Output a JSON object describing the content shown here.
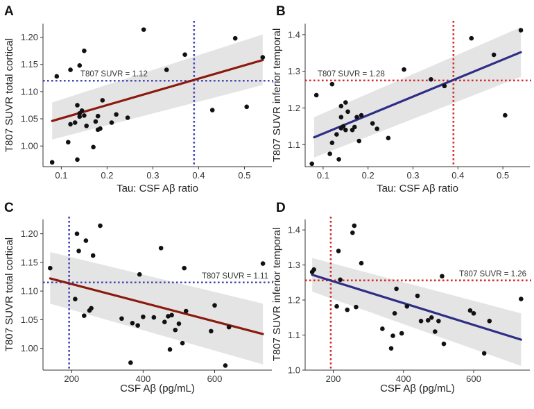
{
  "chart_data": [
    {
      "panel": "A",
      "type": "scatter",
      "xlabel": "Tau: CSF Aβ ratio",
      "ylabel": "T807 SUVR total cortical",
      "xlim": [
        0.06,
        0.56
      ],
      "ylim": [
        0.962,
        1.225
      ],
      "xticks": [
        0.1,
        0.2,
        0.3,
        0.4,
        0.5
      ],
      "xtick_labels": [
        "0.1",
        "0.2",
        "0.3",
        "0.4",
        "0.5"
      ],
      "yticks": [
        1.0,
        1.05,
        1.1,
        1.15,
        1.2
      ],
      "ytick_labels": [
        "1.00",
        "1.05",
        "1.10",
        "1.15",
        "1.20"
      ],
      "points": [
        [
          0.08,
          0.97
        ],
        [
          0.09,
          1.128
        ],
        [
          0.115,
          1.007
        ],
        [
          0.12,
          1.04
        ],
        [
          0.12,
          1.14
        ],
        [
          0.13,
          1.043
        ],
        [
          0.135,
          0.975
        ],
        [
          0.135,
          1.075
        ],
        [
          0.14,
          1.06
        ],
        [
          0.14,
          1.148
        ],
        [
          0.14,
          1.054
        ],
        [
          0.145,
          1.065
        ],
        [
          0.15,
          1.056
        ],
        [
          0.15,
          1.175
        ],
        [
          0.155,
          1.037
        ],
        [
          0.17,
          0.998
        ],
        [
          0.175,
          1.045
        ],
        [
          0.18,
          1.03
        ],
        [
          0.18,
          1.055
        ],
        [
          0.185,
          1.032
        ],
        [
          0.19,
          1.084
        ],
        [
          0.21,
          1.043
        ],
        [
          0.22,
          1.058
        ],
        [
          0.245,
          1.052
        ],
        [
          0.28,
          1.214
        ],
        [
          0.33,
          1.14
        ],
        [
          0.37,
          1.168
        ],
        [
          0.43,
          1.066
        ],
        [
          0.48,
          1.198
        ],
        [
          0.505,
          1.072
        ],
        [
          0.54,
          1.163
        ]
      ],
      "regression": {
        "x": [
          0.08,
          0.54
        ],
        "y": [
          1.046,
          1.158
        ],
        "color": "#8b1a0e",
        "ci_upper": [
          1.08,
          1.205
        ],
        "ci_lower": [
          1.012,
          1.112
        ]
      },
      "threshold_x": 0.39,
      "threshold_y": 1.12,
      "ref_color": "#4646b4",
      "ref_label": "T807 SUVR = 1.12"
    },
    {
      "panel": "B",
      "type": "scatter",
      "xlabel": "Tau: CSF Aβ ratio",
      "ylabel": "T807 SUVR inferior temporal",
      "xlim": [
        0.06,
        0.56
      ],
      "ylim": [
        1.04,
        1.43
      ],
      "xticks": [
        0.1,
        0.2,
        0.3,
        0.4,
        0.5
      ],
      "xtick_labels": [
        "0.1",
        "0.2",
        "0.3",
        "0.4",
        "0.5"
      ],
      "yticks": [
        1.1,
        1.2,
        1.3,
        1.4
      ],
      "ytick_labels": [
        "1.1",
        "1.2",
        "1.3",
        "1.4"
      ],
      "points": [
        [
          0.075,
          1.048
        ],
        [
          0.085,
          1.235
        ],
        [
          0.115,
          1.075
        ],
        [
          0.12,
          1.105
        ],
        [
          0.12,
          1.265
        ],
        [
          0.13,
          1.128
        ],
        [
          0.135,
          1.06
        ],
        [
          0.14,
          1.145
        ],
        [
          0.14,
          1.175
        ],
        [
          0.14,
          1.205
        ],
        [
          0.145,
          1.15
        ],
        [
          0.15,
          1.14
        ],
        [
          0.15,
          1.215
        ],
        [
          0.155,
          1.19
        ],
        [
          0.165,
          1.14
        ],
        [
          0.17,
          1.148
        ],
        [
          0.175,
          1.175
        ],
        [
          0.18,
          1.11
        ],
        [
          0.185,
          1.18
        ],
        [
          0.21,
          1.158
        ],
        [
          0.22,
          1.143
        ],
        [
          0.245,
          1.118
        ],
        [
          0.28,
          1.305
        ],
        [
          0.34,
          1.278
        ],
        [
          0.37,
          1.26
        ],
        [
          0.43,
          1.39
        ],
        [
          0.48,
          1.345
        ],
        [
          0.505,
          1.18
        ],
        [
          0.54,
          1.412
        ]
      ],
      "regression": {
        "x": [
          0.08,
          0.54
        ],
        "y": [
          1.12,
          1.352
        ],
        "color": "#2e2e86",
        "ci_upper": [
          1.175,
          1.42
        ],
        "ci_lower": [
          1.065,
          1.285
        ]
      },
      "threshold_x": 0.39,
      "threshold_y": 1.275,
      "ref_color": "#d42a2a",
      "ref_label": "T807 SUVR = 1.28"
    },
    {
      "panel": "C",
      "type": "scatter",
      "xlabel": "CSF Aβ (pg/mL)",
      "ylabel": "T807 SUVR total cortical",
      "xlim": [
        120,
        760
      ],
      "ylim": [
        0.962,
        1.225
      ],
      "xticks": [
        200,
        400,
        600
      ],
      "xtick_labels": [
        "200",
        "400",
        "600"
      ],
      "yticks": [
        1.0,
        1.05,
        1.1,
        1.15,
        1.2
      ],
      "ytick_labels": [
        "1.00",
        "1.05",
        "1.10",
        "1.15",
        "1.20"
      ],
      "points": [
        [
          140,
          1.14
        ],
        [
          210,
          1.086
        ],
        [
          215,
          1.2
        ],
        [
          220,
          1.17
        ],
        [
          235,
          1.057
        ],
        [
          240,
          1.188
        ],
        [
          250,
          1.066
        ],
        [
          255,
          1.07
        ],
        [
          260,
          1.162
        ],
        [
          280,
          1.214
        ],
        [
          340,
          1.052
        ],
        [
          365,
          0.975
        ],
        [
          370,
          1.044
        ],
        [
          385,
          1.04
        ],
        [
          390,
          1.129
        ],
        [
          400,
          1.055
        ],
        [
          430,
          1.054
        ],
        [
          450,
          1.175
        ],
        [
          460,
          1.046
        ],
        [
          470,
          1.056
        ],
        [
          475,
          0.998
        ],
        [
          480,
          1.058
        ],
        [
          490,
          1.032
        ],
        [
          500,
          1.043
        ],
        [
          510,
          1.009
        ],
        [
          520,
          1.065
        ],
        [
          515,
          1.14
        ],
        [
          590,
          1.03
        ],
        [
          600,
          1.075
        ],
        [
          630,
          0.97
        ],
        [
          640,
          1.037
        ],
        [
          735,
          1.148
        ]
      ],
      "regression": {
        "x": [
          140,
          735
        ],
        "y": [
          1.122,
          1.025
        ],
        "color": "#8b1a0e",
        "ci_upper": [
          1.168,
          1.078
        ],
        "ci_lower": [
          1.078,
          0.972
        ]
      },
      "threshold_x": 193,
      "threshold_y": 1.115,
      "ref_color": "#4646b4",
      "ref_label": "T807 SUVR = 1.11"
    },
    {
      "panel": "D",
      "type": "scatter",
      "xlabel": "CSF Aβ (pg/mL)",
      "ylabel": "T807 SUVR inferior temporal",
      "xlim": [
        120,
        760
      ],
      "ylim": [
        1.0,
        1.43
      ],
      "xticks": [
        200,
        400,
        600
      ],
      "xtick_labels": [
        "200",
        "400",
        "600"
      ],
      "yticks": [
        1.0,
        1.1,
        1.2,
        1.3,
        1.4
      ],
      "ytick_labels": [
        "1.0",
        "1.1",
        "1.2",
        "1.3",
        "1.4"
      ],
      "points": [
        [
          140,
          1.28
        ],
        [
          145,
          1.287
        ],
        [
          210,
          1.182
        ],
        [
          215,
          1.34
        ],
        [
          220,
          1.258
        ],
        [
          240,
          1.172
        ],
        [
          255,
          1.392
        ],
        [
          260,
          1.412
        ],
        [
          265,
          1.18
        ],
        [
          280,
          1.305
        ],
        [
          340,
          1.118
        ],
        [
          365,
          1.062
        ],
        [
          370,
          1.098
        ],
        [
          375,
          1.162
        ],
        [
          380,
          1.232
        ],
        [
          395,
          1.105
        ],
        [
          410,
          1.182
        ],
        [
          440,
          1.212
        ],
        [
          450,
          1.14
        ],
        [
          470,
          1.142
        ],
        [
          480,
          1.15
        ],
        [
          490,
          1.11
        ],
        [
          500,
          1.14
        ],
        [
          515,
          1.075
        ],
        [
          510,
          1.268
        ],
        [
          590,
          1.17
        ],
        [
          600,
          1.162
        ],
        [
          630,
          1.048
        ],
        [
          645,
          1.14
        ],
        [
          735,
          1.203
        ]
      ],
      "regression": {
        "x": [
          140,
          735
        ],
        "y": [
          1.272,
          1.087
        ],
        "color": "#2e2e86",
        "ci_upper": [
          1.32,
          1.162
        ],
        "ci_lower": [
          1.224,
          1.012
        ]
      },
      "threshold_x": 193,
      "threshold_y": 1.256,
      "ref_color": "#d42a2a",
      "ref_label": "T807 SUVR = 1.26"
    }
  ]
}
